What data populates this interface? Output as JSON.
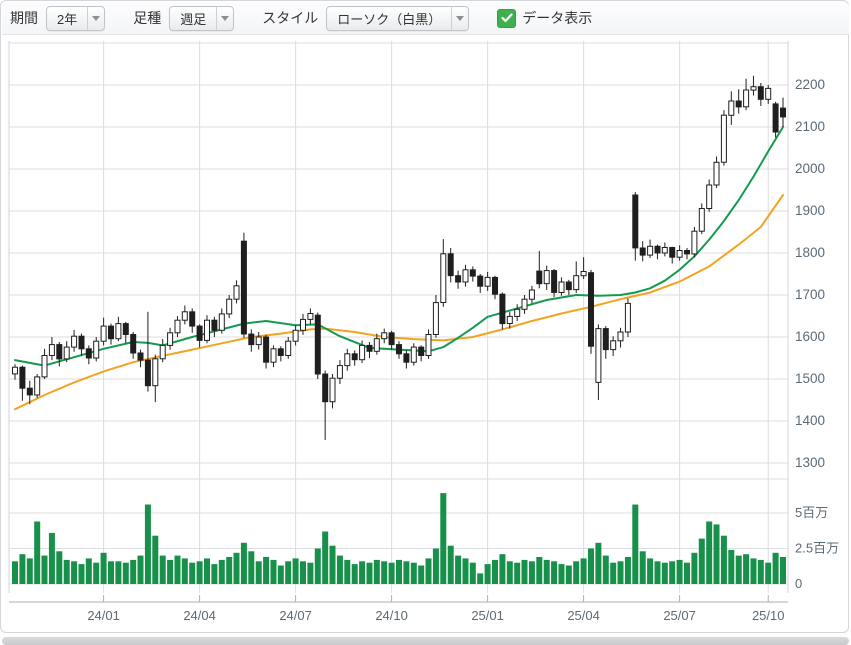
{
  "toolbar": {
    "period_label": "期間",
    "period_value": "2年",
    "bar_type_label": "足種",
    "bar_type_value": "週足",
    "style_label": "スタイル",
    "style_value": "ローソク（白黒）",
    "data_display_label": "データ表示",
    "data_display_checked": true
  },
  "colors": {
    "candle_stroke": "#1f1f1f",
    "candle_up_fill": "#ffffff",
    "candle_down_fill": "#1f1f1f",
    "ma_short": "#149a4f",
    "ma_long": "#f3a321",
    "volume_bar": "#17904a",
    "grid": "#dcdddf",
    "plot_edge": "#d4d6d9",
    "axis_line": "#a9aeb3",
    "axis_label": "#5c6a76",
    "checkbox": "#3fb14c"
  },
  "chart_data": {
    "type": "candlestick+volume+ma",
    "period": "2年 (weekly bars, approx Oct 2023 - Oct 2025)",
    "price_axis": {
      "ticks": [
        1300,
        1400,
        1500,
        1600,
        1700,
        1800,
        1900,
        2000,
        2100,
        2200
      ],
      "position": "right"
    },
    "volume_axis": {
      "ticks": [
        {
          "v": 0,
          "label": "0"
        },
        {
          "v": 2.5,
          "label": "2.5百万"
        },
        {
          "v": 5,
          "label": "5百万"
        }
      ],
      "unit": "millions of shares"
    },
    "x_axis": {
      "ticks": [
        {
          "week": 12,
          "label": "24/01"
        },
        {
          "week": 25,
          "label": "24/04"
        },
        {
          "week": 38,
          "label": "24/07"
        },
        {
          "week": 51,
          "label": "24/10"
        },
        {
          "week": 64,
          "label": "25/01"
        },
        {
          "week": 77,
          "label": "25/04"
        },
        {
          "week": 90,
          "label": "25/07"
        },
        {
          "week": 102,
          "label": "25/10"
        }
      ]
    },
    "legend": {
      "ma_short": "short-term moving average (green)",
      "ma_long": "long-term moving average (orange)"
    },
    "candles_ohlc": [
      [
        1512,
        1535,
        1498,
        1528
      ],
      [
        1528,
        1532,
        1448,
        1478
      ],
      [
        1478,
        1496,
        1440,
        1462
      ],
      [
        1462,
        1512,
        1455,
        1505
      ],
      [
        1505,
        1572,
        1500,
        1556
      ],
      [
        1556,
        1600,
        1545,
        1582
      ],
      [
        1582,
        1588,
        1530,
        1548
      ],
      [
        1548,
        1590,
        1540,
        1576
      ],
      [
        1576,
        1617,
        1565,
        1602
      ],
      [
        1602,
        1608,
        1555,
        1572
      ],
      [
        1572,
        1580,
        1535,
        1550
      ],
      [
        1550,
        1600,
        1542,
        1590
      ],
      [
        1590,
        1646,
        1580,
        1626
      ],
      [
        1626,
        1632,
        1582,
        1596
      ],
      [
        1596,
        1648,
        1590,
        1632
      ],
      [
        1632,
        1636,
        1585,
        1606
      ],
      [
        1606,
        1612,
        1548,
        1562
      ],
      [
        1562,
        1570,
        1528,
        1545
      ],
      [
        1545,
        1660,
        1470,
        1484
      ],
      [
        1484,
        1558,
        1445,
        1548
      ],
      [
        1548,
        1595,
        1540,
        1580
      ],
      [
        1580,
        1622,
        1570,
        1610
      ],
      [
        1610,
        1650,
        1600,
        1640
      ],
      [
        1640,
        1675,
        1630,
        1660
      ],
      [
        1660,
        1668,
        1610,
        1626
      ],
      [
        1626,
        1630,
        1575,
        1592
      ],
      [
        1592,
        1652,
        1585,
        1640
      ],
      [
        1640,
        1648,
        1600,
        1616
      ],
      [
        1616,
        1668,
        1608,
        1655
      ],
      [
        1655,
        1700,
        1645,
        1690
      ],
      [
        1690,
        1735,
        1680,
        1722
      ],
      [
        1828,
        1848,
        1598,
        1607
      ],
      [
        1607,
        1618,
        1565,
        1582
      ],
      [
        1582,
        1612,
        1570,
        1600
      ],
      [
        1600,
        1605,
        1525,
        1540
      ],
      [
        1540,
        1580,
        1528,
        1572
      ],
      [
        1572,
        1578,
        1542,
        1556
      ],
      [
        1556,
        1600,
        1548,
        1590
      ],
      [
        1590,
        1628,
        1580,
        1616
      ],
      [
        1616,
        1655,
        1605,
        1642
      ],
      [
        1642,
        1668,
        1630,
        1656
      ],
      [
        1652,
        1658,
        1500,
        1512
      ],
      [
        1512,
        1520,
        1355,
        1446
      ],
      [
        1446,
        1512,
        1430,
        1502
      ],
      [
        1502,
        1545,
        1488,
        1532
      ],
      [
        1532,
        1572,
        1520,
        1560
      ],
      [
        1560,
        1568,
        1532,
        1546
      ],
      [
        1546,
        1592,
        1538,
        1580
      ],
      [
        1580,
        1588,
        1550,
        1566
      ],
      [
        1566,
        1608,
        1558,
        1596
      ],
      [
        1596,
        1620,
        1585,
        1610
      ],
      [
        1610,
        1615,
        1570,
        1582
      ],
      [
        1582,
        1590,
        1548,
        1560
      ],
      [
        1560,
        1568,
        1525,
        1540
      ],
      [
        1540,
        1585,
        1532,
        1576
      ],
      [
        1576,
        1580,
        1542,
        1556
      ],
      [
        1556,
        1618,
        1548,
        1606
      ],
      [
        1606,
        1700,
        1598,
        1682
      ],
      [
        1682,
        1833,
        1672,
        1798
      ],
      [
        1798,
        1812,
        1730,
        1746
      ],
      [
        1746,
        1758,
        1715,
        1731
      ],
      [
        1731,
        1772,
        1720,
        1760
      ],
      [
        1760,
        1768,
        1732,
        1745
      ],
      [
        1745,
        1750,
        1705,
        1721
      ],
      [
        1721,
        1755,
        1710,
        1742
      ],
      [
        1742,
        1746,
        1690,
        1702
      ],
      [
        1702,
        1706,
        1618,
        1632
      ],
      [
        1632,
        1660,
        1620,
        1649
      ],
      [
        1649,
        1678,
        1638,
        1666
      ],
      [
        1666,
        1700,
        1655,
        1690
      ],
      [
        1690,
        1722,
        1680,
        1712
      ],
      [
        1757,
        1805,
        1716,
        1727
      ],
      [
        1727,
        1770,
        1712,
        1758
      ],
      [
        1758,
        1762,
        1695,
        1706
      ],
      [
        1706,
        1742,
        1698,
        1731
      ],
      [
        1731,
        1736,
        1700,
        1713
      ],
      [
        1713,
        1780,
        1705,
        1746
      ],
      [
        1746,
        1790,
        1738,
        1756
      ],
      [
        1753,
        1760,
        1560,
        1578
      ],
      [
        1492,
        1630,
        1450,
        1620
      ],
      [
        1620,
        1626,
        1548,
        1570
      ],
      [
        1570,
        1602,
        1555,
        1591
      ],
      [
        1591,
        1622,
        1575,
        1612
      ],
      [
        1612,
        1692,
        1600,
        1680
      ],
      [
        1938,
        1945,
        1782,
        1812
      ],
      [
        1812,
        1828,
        1780,
        1795
      ],
      [
        1795,
        1832,
        1788,
        1816
      ],
      [
        1816,
        1820,
        1785,
        1800
      ],
      [
        1800,
        1825,
        1792,
        1813
      ],
      [
        1813,
        1815,
        1775,
        1790
      ],
      [
        1790,
        1818,
        1782,
        1806
      ],
      [
        1806,
        1812,
        1785,
        1798
      ],
      [
        1798,
        1862,
        1790,
        1852
      ],
      [
        1852,
        1918,
        1845,
        1906
      ],
      [
        1906,
        1975,
        1898,
        1962
      ],
      [
        1962,
        2030,
        1955,
        2016
      ],
      [
        2016,
        2140,
        2008,
        2128
      ],
      [
        2128,
        2185,
        2105,
        2162
      ],
      [
        2162,
        2190,
        2132,
        2148
      ],
      [
        2148,
        2215,
        2140,
        2188
      ],
      [
        2188,
        2222,
        2175,
        2196
      ],
      [
        2196,
        2205,
        2150,
        2166
      ],
      [
        2166,
        2200,
        2155,
        2192
      ],
      [
        2155,
        2160,
        2075,
        2088
      ],
      [
        2145,
        2170,
        2100,
        2124
      ]
    ],
    "volumes_millions": [
      1.6,
      2.1,
      1.8,
      4.4,
      2.0,
      3.6,
      2.3,
      1.7,
      1.6,
      1.4,
      1.8,
      1.5,
      2.2,
      1.6,
      1.6,
      1.5,
      1.7,
      2.0,
      5.6,
      3.4,
      2.0,
      1.7,
      2.0,
      1.8,
      1.5,
      1.6,
      1.8,
      1.4,
      1.7,
      1.9,
      2.2,
      2.9,
      2.3,
      1.6,
      1.9,
      1.7,
      1.3,
      1.6,
      1.8,
      1.6,
      1.5,
      2.5,
      3.7,
      2.7,
      2.0,
      1.7,
      1.4,
      1.6,
      1.5,
      1.7,
      1.6,
      1.5,
      1.7,
      1.6,
      1.5,
      1.3,
      1.8,
      2.5,
      6.4,
      2.7,
      2.0,
      1.8,
      1.5,
      0.75,
      1.4,
      1.7,
      2.1,
      1.6,
      1.5,
      1.7,
      1.6,
      1.9,
      1.7,
      1.6,
      1.4,
      1.3,
      1.6,
      1.8,
      2.5,
      2.9,
      2.0,
      1.5,
      1.6,
      1.9,
      5.6,
      2.3,
      1.8,
      1.6,
      1.5,
      1.6,
      1.7,
      1.5,
      2.2,
      3.2,
      4.4,
      4.2,
      3.4,
      2.4,
      2.0,
      2.1,
      1.8,
      1.7,
      1.5,
      2.2,
      1.9
    ],
    "ma_short_anchors": [
      [
        0,
        1545
      ],
      [
        4,
        1532
      ],
      [
        8,
        1552
      ],
      [
        12,
        1572
      ],
      [
        16,
        1588
      ],
      [
        18,
        1586
      ],
      [
        20,
        1580
      ],
      [
        24,
        1600
      ],
      [
        28,
        1618
      ],
      [
        31,
        1632
      ],
      [
        34,
        1638
      ],
      [
        38,
        1628
      ],
      [
        41,
        1630
      ],
      [
        44,
        1602
      ],
      [
        48,
        1574
      ],
      [
        52,
        1570
      ],
      [
        56,
        1566
      ],
      [
        58,
        1576
      ],
      [
        60,
        1598
      ],
      [
        62,
        1622
      ],
      [
        64,
        1648
      ],
      [
        68,
        1668
      ],
      [
        72,
        1688
      ],
      [
        76,
        1700
      ],
      [
        79,
        1698
      ],
      [
        82,
        1700
      ],
      [
        84,
        1706
      ],
      [
        86,
        1716
      ],
      [
        88,
        1734
      ],
      [
        90,
        1760
      ],
      [
        92,
        1792
      ],
      [
        94,
        1832
      ],
      [
        96,
        1876
      ],
      [
        98,
        1926
      ],
      [
        100,
        1982
      ],
      [
        102,
        2042
      ],
      [
        104,
        2100
      ]
    ],
    "ma_long_anchors": [
      [
        0,
        1428
      ],
      [
        4,
        1462
      ],
      [
        8,
        1492
      ],
      [
        12,
        1518
      ],
      [
        16,
        1540
      ],
      [
        20,
        1555
      ],
      [
        24,
        1570
      ],
      [
        28,
        1585
      ],
      [
        32,
        1600
      ],
      [
        36,
        1608
      ],
      [
        40,
        1618
      ],
      [
        42,
        1620
      ],
      [
        46,
        1612
      ],
      [
        50,
        1600
      ],
      [
        54,
        1595
      ],
      [
        58,
        1592
      ],
      [
        62,
        1600
      ],
      [
        66,
        1618
      ],
      [
        70,
        1638
      ],
      [
        74,
        1656
      ],
      [
        78,
        1672
      ],
      [
        82,
        1690
      ],
      [
        86,
        1706
      ],
      [
        90,
        1732
      ],
      [
        94,
        1768
      ],
      [
        98,
        1820
      ],
      [
        101,
        1862
      ],
      [
        104,
        1938
      ]
    ]
  }
}
